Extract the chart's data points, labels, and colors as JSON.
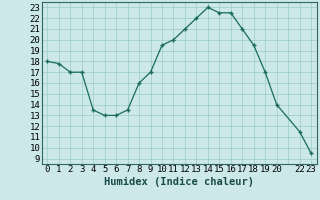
{
  "x": [
    0,
    1,
    2,
    3,
    4,
    5,
    6,
    7,
    8,
    9,
    10,
    11,
    12,
    13,
    14,
    15,
    16,
    17,
    18,
    19,
    20,
    22,
    23
  ],
  "y": [
    18,
    17.8,
    17,
    17,
    13.5,
    13,
    13,
    13.5,
    16,
    17,
    19.5,
    20,
    21,
    22,
    23,
    22.5,
    22.5,
    21,
    19.5,
    17,
    14,
    11.5,
    9.5
  ],
  "xlabel": "Humidex (Indice chaleur)",
  "xlim": [
    -0.5,
    23.5
  ],
  "ylim": [
    8.5,
    23.5
  ],
  "yticks": [
    9,
    10,
    11,
    12,
    13,
    14,
    15,
    16,
    17,
    18,
    19,
    20,
    21,
    22,
    23
  ],
  "line_color": "#1a6b5e",
  "marker_color": "#1a6b5e",
  "bg_color": "#cce8e8",
  "grid_color": "#99cccc",
  "tick_fontsize": 6.5,
  "label_fontsize": 7.5
}
